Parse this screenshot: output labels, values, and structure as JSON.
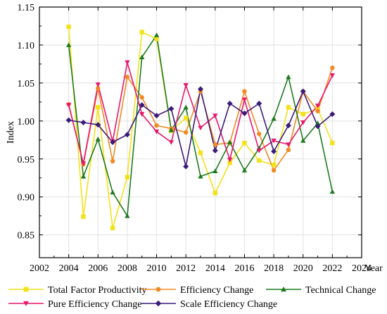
{
  "chart_data": {
    "type": "line",
    "title": "",
    "xlabel": "Year",
    "ylabel": "Index",
    "xlim": [
      2002,
      2024
    ],
    "ylim": [
      0.82,
      1.15
    ],
    "x_ticks": [
      "2002",
      "2004",
      "2006",
      "2008",
      "2010",
      "2012",
      "2014",
      "2016",
      "2018",
      "2020",
      "2022",
      "2024"
    ],
    "y_ticks": [
      "0.85",
      "0.90",
      "0.95",
      "1.00",
      "1.05",
      "1.10",
      "1.15"
    ],
    "grid": true,
    "legend_position": "bottom",
    "x": [
      2004,
      2005,
      2006,
      2007,
      2008,
      2009,
      2010,
      2011,
      2012,
      2013,
      2014,
      2015,
      2016,
      2017,
      2018,
      2019,
      2020,
      2021,
      2022
    ],
    "series": [
      {
        "name": "Total Factor Productivity",
        "color": "#F2E21B",
        "marker": "square",
        "values": [
          1.124,
          0.874,
          1.018,
          0.859,
          0.926,
          1.117,
          1.108,
          0.987,
          1.004,
          0.958,
          0.905,
          0.945,
          0.971,
          0.948,
          0.942,
          1.018,
          1.009,
          1.016,
          0.971
        ]
      },
      {
        "name": "Efficiency Change",
        "color": "#F08A24",
        "marker": "circle",
        "values": [
          1.022,
          0.943,
          1.043,
          0.947,
          1.058,
          1.031,
          0.994,
          0.99,
          0.985,
          1.039,
          0.969,
          0.971,
          1.039,
          0.983,
          0.935,
          0.962,
          1.039,
          1.013,
          1.07
        ]
      },
      {
        "name": "Technical Change",
        "color": "#1F7A1F",
        "marker": "triangle",
        "values": [
          1.1,
          0.927,
          0.976,
          0.906,
          0.875,
          1.084,
          1.113,
          0.988,
          1.018,
          0.927,
          0.934,
          0.972,
          0.935,
          0.964,
          1.003,
          1.058,
          0.974,
          0.997,
          0.907
        ]
      },
      {
        "name": "Pure Efficiency Change",
        "color": "#E8176B",
        "marker": "triangle-down",
        "values": [
          1.021,
          0.944,
          1.048,
          0.973,
          1.077,
          1.009,
          0.986,
          0.972,
          1.047,
          0.991,
          1.007,
          0.949,
          1.028,
          0.961,
          0.974,
          0.969,
          0.998,
          1.02,
          1.06
        ]
      },
      {
        "name": "Scale Efficiency Change",
        "color": "#3B1B7A",
        "marker": "diamond",
        "values": [
          1.001,
          0.998,
          0.995,
          0.972,
          0.982,
          1.021,
          1.007,
          1.016,
          0.94,
          1.042,
          0.961,
          1.023,
          1.01,
          1.023,
          0.96,
          0.994,
          1.039,
          0.993,
          1.009
        ]
      }
    ]
  }
}
